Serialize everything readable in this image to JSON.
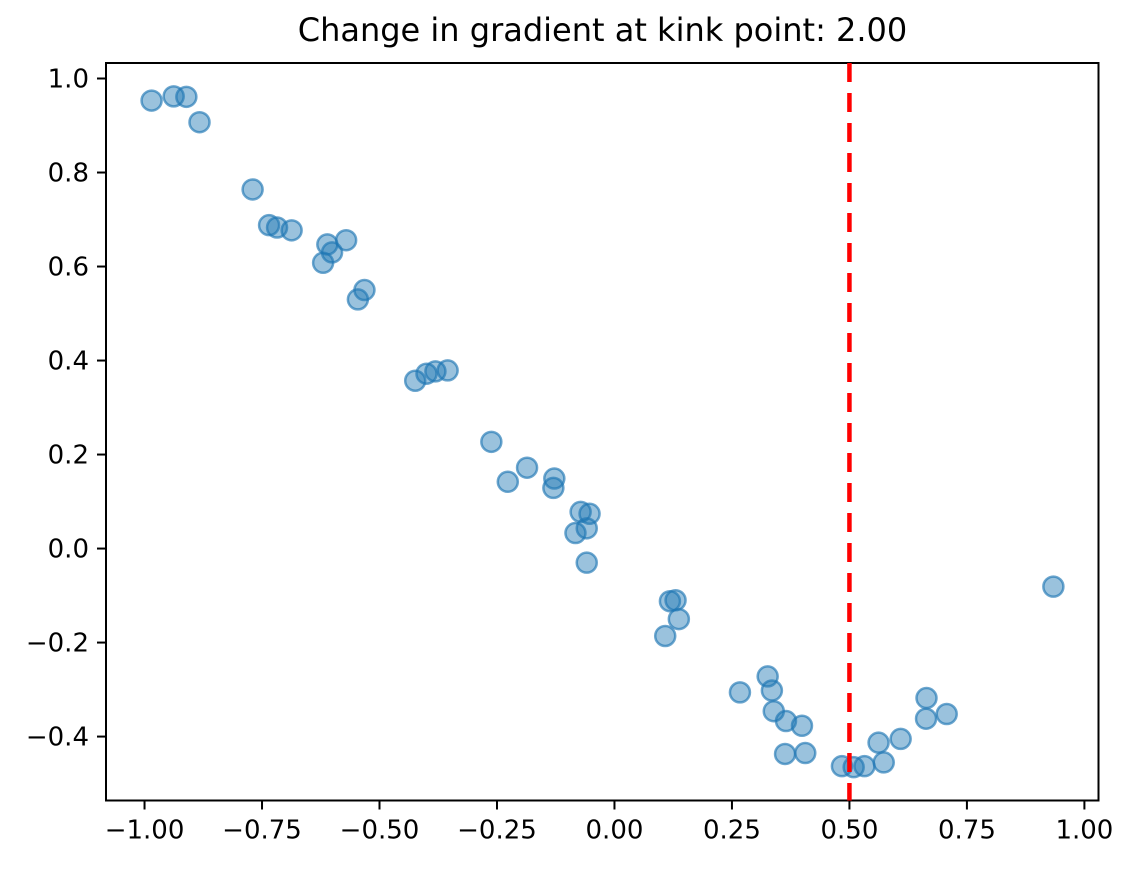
{
  "chart_data": {
    "type": "scatter",
    "title": "Change in gradient at kink point: 2.00",
    "xlabel": "",
    "ylabel": "",
    "xlim": [
      -1.082,
      1.03
    ],
    "ylim": [
      -0.536,
      1.033
    ],
    "grid": false,
    "legend": null,
    "xticks": {
      "values": [
        -1.0,
        -0.75,
        -0.5,
        -0.25,
        0.0,
        0.25,
        0.5,
        0.75,
        1.0
      ],
      "labels": [
        "−1.00",
        "−0.75",
        "−0.50",
        "−0.25",
        "0.00",
        "0.25",
        "0.50",
        "0.75",
        "1.00"
      ]
    },
    "yticks": {
      "values": [
        1.0,
        0.8,
        0.6,
        0.4,
        0.2,
        0.0,
        -0.2,
        -0.4
      ],
      "labels": [
        "1.0",
        "0.8",
        "0.6",
        "0.4",
        "0.2",
        "0.0",
        "−0.2",
        "−0.4"
      ]
    },
    "series": [
      {
        "name": "scatter-points",
        "marker": {
          "color": "#1f77b4",
          "fill_opacity": 0.45,
          "edge_opacity": 0.65,
          "radius": 10
        },
        "x": [
          -0.985,
          -0.938,
          -0.911,
          -0.883,
          -0.77,
          -0.735,
          -0.718,
          -0.687,
          -0.611,
          -0.601,
          -0.62,
          -0.571,
          -0.532,
          -0.546,
          -0.424,
          -0.4,
          -0.381,
          -0.355,
          -0.262,
          -0.227,
          -0.186,
          -0.128,
          -0.13,
          -0.072,
          -0.053,
          -0.083,
          -0.059,
          -0.059,
          0.118,
          0.13,
          0.137,
          0.108,
          0.267,
          0.326,
          0.335,
          0.339,
          0.365,
          0.399,
          0.363,
          0.406,
          0.484,
          0.509,
          0.532,
          0.573,
          0.562,
          0.609,
          0.664,
          0.663,
          0.707,
          0.934
        ],
        "y": [
          0.953,
          0.962,
          0.961,
          0.907,
          0.764,
          0.688,
          0.683,
          0.677,
          0.647,
          0.63,
          0.608,
          0.656,
          0.55,
          0.53,
          0.357,
          0.372,
          0.377,
          0.379,
          0.227,
          0.142,
          0.172,
          0.149,
          0.129,
          0.078,
          0.074,
          0.033,
          0.043,
          -0.03,
          -0.112,
          -0.11,
          -0.15,
          -0.186,
          -0.306,
          -0.272,
          -0.302,
          -0.346,
          -0.367,
          -0.377,
          -0.437,
          -0.435,
          -0.463,
          -0.465,
          -0.463,
          -0.455,
          -0.413,
          -0.405,
          -0.318,
          -0.362,
          -0.352,
          -0.081
        ]
      }
    ],
    "vline": {
      "x": 0.5,
      "color": "#ff0000",
      "linestyle": "dashed",
      "linewidth": 4.5
    },
    "spine_color": "#000000",
    "tick_color": "#000000",
    "text_color": "#000000"
  }
}
